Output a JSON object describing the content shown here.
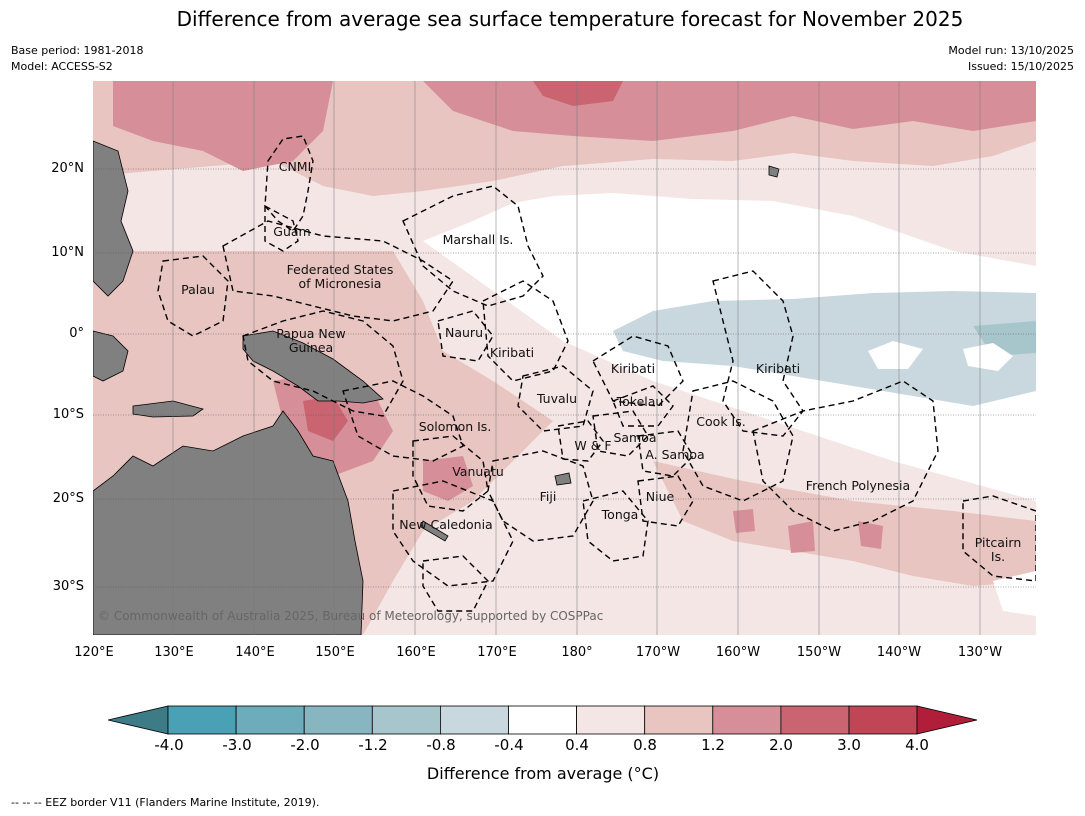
{
  "header": {
    "title": "Difference from average sea surface temperature forecast for November 2025",
    "base_period": "Base period: 1981-2018",
    "model": "Model: ACCESS-S2",
    "model_run": "Model run: 13/10/2025",
    "issued": "Issued: 15/10/2025"
  },
  "map": {
    "lat_labels": [
      "20°N",
      "10°N",
      "0°",
      "10°S",
      "20°S",
      "30°S"
    ],
    "lon_labels": [
      "120°E",
      "130°E",
      "140°E",
      "150°E",
      "160°E",
      "170°E",
      "180°",
      "170°W",
      "160°W",
      "150°W",
      "140°W",
      "130°W"
    ],
    "regions": [
      "CNMI",
      "Guam",
      "Marshall Is.",
      "Federated States\nof Micronesia",
      "Palau",
      "Papua New\nGuinea",
      "Nauru",
      "Kiribati",
      "Kiribati",
      "Kiribati",
      "Tuvalu",
      "Tokelau",
      "Cook Is.",
      "Solomon Is.",
      "Samoa",
      "W & F",
      "A. Samoa",
      "Vanuatu",
      "Fiji",
      "Niue",
      "French Polynesia",
      "Tonga",
      "New Caledonia",
      "Pitcairn\nIs."
    ],
    "copyright": "© Commonwealth of Australia 2025, Bureau of Meteorology, supported by COSPPac",
    "colors": {
      "land": "#808080",
      "neutral": "#ffffff",
      "warm_1": "#f4e6e5",
      "warm_2": "#e8c5c1",
      "warm_3": "#d68f98",
      "warm_4": "#c96470",
      "warm_5": "#c04656",
      "warm_extreme": "#b11e3a",
      "cool_1": "#c8d8de",
      "cool_2": "#a7c6cb",
      "cool_3": "#87b6c0",
      "cool_4": "#6dadbb",
      "cool_5": "#4aa1b5",
      "cool_extreme": "#3d7c87"
    }
  },
  "colorbar": {
    "ticks": [
      "-4.0",
      "-3.0",
      "-2.0",
      "-1.2",
      "-0.8",
      "-0.4",
      "0.4",
      "0.8",
      "1.2",
      "2.0",
      "3.0",
      "4.0"
    ],
    "colors": [
      "#4aa1b5",
      "#6dadbb",
      "#87b6c0",
      "#a7c6cb",
      "#c8d8de",
      "#ffffff",
      "#f4e6e5",
      "#e8c5c1",
      "#d68f98",
      "#c96470",
      "#c04656"
    ],
    "min_extend_color": "#3d7c87",
    "max_extend_color": "#b11e3a",
    "label": "Difference from average (°C)"
  },
  "footer": {
    "legend": "--  --  -- EEZ border V11 (Flanders Marine Institute, 2019)."
  }
}
